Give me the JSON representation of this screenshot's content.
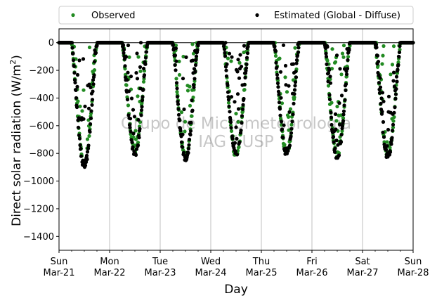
{
  "chart_data": {
    "type": "scatter",
    "xlabel": "Day",
    "ylabel_main": "Direct solar radiation (W/m",
    "ylabel_sup": "2",
    "ylabel_close": ")",
    "ylim": [
      -1500,
      100
    ],
    "yticks": [
      0,
      -200,
      -400,
      -600,
      -800,
      -1000,
      -1200,
      -1400
    ],
    "xlim": [
      0,
      7
    ],
    "xticks": [
      {
        "pos": 0,
        "day": "Sun",
        "date": "Mar-21"
      },
      {
        "pos": 1,
        "day": "Mon",
        "date": "Mar-22"
      },
      {
        "pos": 2,
        "day": "Tue",
        "date": "Mar-23"
      },
      {
        "pos": 3,
        "day": "Wed",
        "date": "Mar-24"
      },
      {
        "pos": 4,
        "day": "Thu",
        "date": "Mar-25"
      },
      {
        "pos": 5,
        "day": "Fri",
        "date": "Mar-26"
      },
      {
        "pos": 6,
        "day": "Sat",
        "date": "Mar-27"
      },
      {
        "pos": 7,
        "day": "Sun",
        "date": "Mar-28"
      }
    ],
    "grid": "vertical at day boundaries",
    "reference_line": 0,
    "legend_position": "top, above plot",
    "watermark": [
      "Grupo de Micrometeorologia",
      "IAG / USP"
    ],
    "series": [
      {
        "name": "Observed",
        "color": "#228b22",
        "daily_minimum": [
          -870,
          -780,
          -820,
          -815,
          -790,
          -810,
          -810
        ]
      },
      {
        "name": "Estimated (Global - Diffuse)",
        "color": "#000000",
        "daily_minimum": [
          -890,
          -800,
          -840,
          -800,
          -800,
          -820,
          -820
        ]
      }
    ],
    "daytime_window_days": [
      0.25,
      0.75
    ]
  }
}
